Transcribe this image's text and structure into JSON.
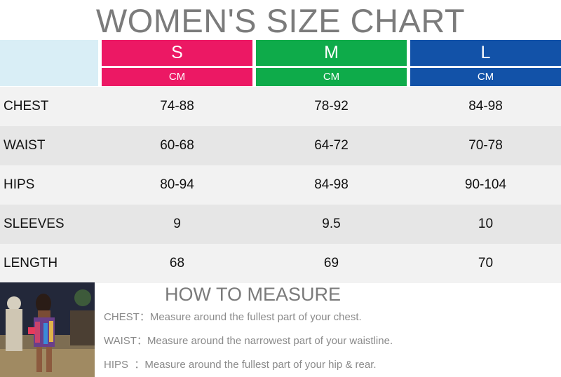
{
  "title": "WOMEN'S SIZE CHART",
  "colors": {
    "s": "#ec1864",
    "m": "#0eab4a",
    "l": "#1252a8",
    "corner": "#d9eef6"
  },
  "sizes": [
    {
      "label": "S",
      "unit": "CM"
    },
    {
      "label": "M",
      "unit": "CM"
    },
    {
      "label": "L",
      "unit": "CM"
    }
  ],
  "rows": [
    {
      "label": "CHEST",
      "values": [
        "74-88",
        "78-92",
        "84-98"
      ]
    },
    {
      "label": "WAIST",
      "values": [
        "60-68",
        "64-72",
        "70-78"
      ]
    },
    {
      "label": "HIPS",
      "values": [
        "80-94",
        "84-98",
        "90-104"
      ]
    },
    {
      "label": "SLEEVES",
      "values": [
        "9",
        "9.5",
        "10"
      ]
    },
    {
      "label": "LENGTH",
      "values": [
        "68",
        "69",
        "70"
      ]
    }
  ],
  "measure": {
    "title": "HOW TO MEASURE",
    "lines": [
      "CHEST：Measure around the fullest part of your chest.",
      "WAIST：Measure around the narrowest part of your waistline.",
      "HIPS  ：Measure around the fullest part of your hip & rear."
    ]
  }
}
